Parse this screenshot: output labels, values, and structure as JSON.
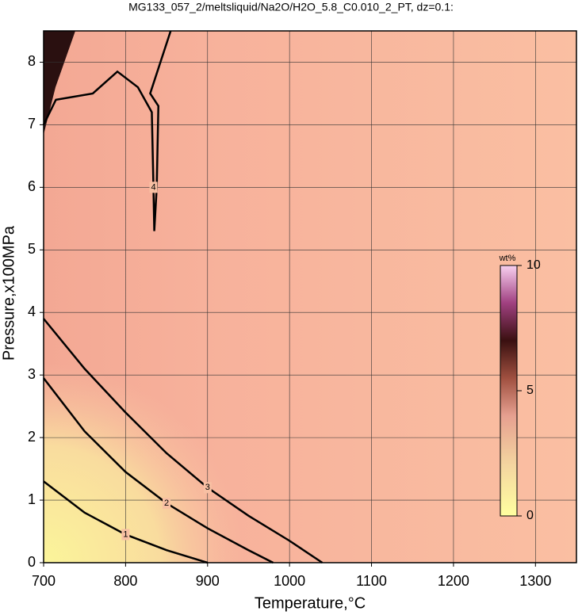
{
  "chart_data": {
    "type": "contour",
    "title": "MG133_057_2/meltsliquid/Na2O/H2O_5.8_C0.010_2_PT, dz=0.1:",
    "x_label": "Temperature,°C",
    "y_label": "Pressure,x100MPa",
    "xlim": [
      700,
      1350
    ],
    "ylim": [
      0,
      8.5
    ],
    "xticks": [
      700,
      800,
      900,
      1000,
      1100,
      1200,
      1300
    ],
    "yticks": [
      0,
      1,
      2,
      3,
      4,
      5,
      6,
      7,
      8
    ],
    "grid": true,
    "contours": [
      {
        "level": 4,
        "x": [
          700,
          715,
          760,
          790,
          815,
          832,
          834,
          835,
          838,
          840,
          830,
          855
        ],
        "y": [
          7.0,
          7.4,
          7.5,
          7.85,
          7.6,
          7.2,
          6.0,
          5.3,
          6.0,
          7.3,
          7.5,
          8.5
        ]
      },
      {
        "level": 3,
        "x": [
          700,
          750,
          800,
          850,
          900,
          950,
          1000,
          1040
        ],
        "y": [
          3.9,
          3.1,
          2.4,
          1.75,
          1.2,
          0.75,
          0.35,
          0
        ]
      },
      {
        "level": 2,
        "x": [
          700,
          750,
          800,
          850,
          900,
          950,
          980
        ],
        "y": [
          2.95,
          2.1,
          1.45,
          0.95,
          0.55,
          0.2,
          0
        ]
      },
      {
        "level": 1,
        "x": [
          700,
          750,
          800,
          850,
          900
        ],
        "y": [
          1.3,
          0.8,
          0.45,
          0.2,
          0
        ]
      }
    ],
    "colorbar": {
      "label": "wt%",
      "lim": [
        0,
        10
      ],
      "ticks": [
        0,
        5,
        10
      ]
    }
  }
}
